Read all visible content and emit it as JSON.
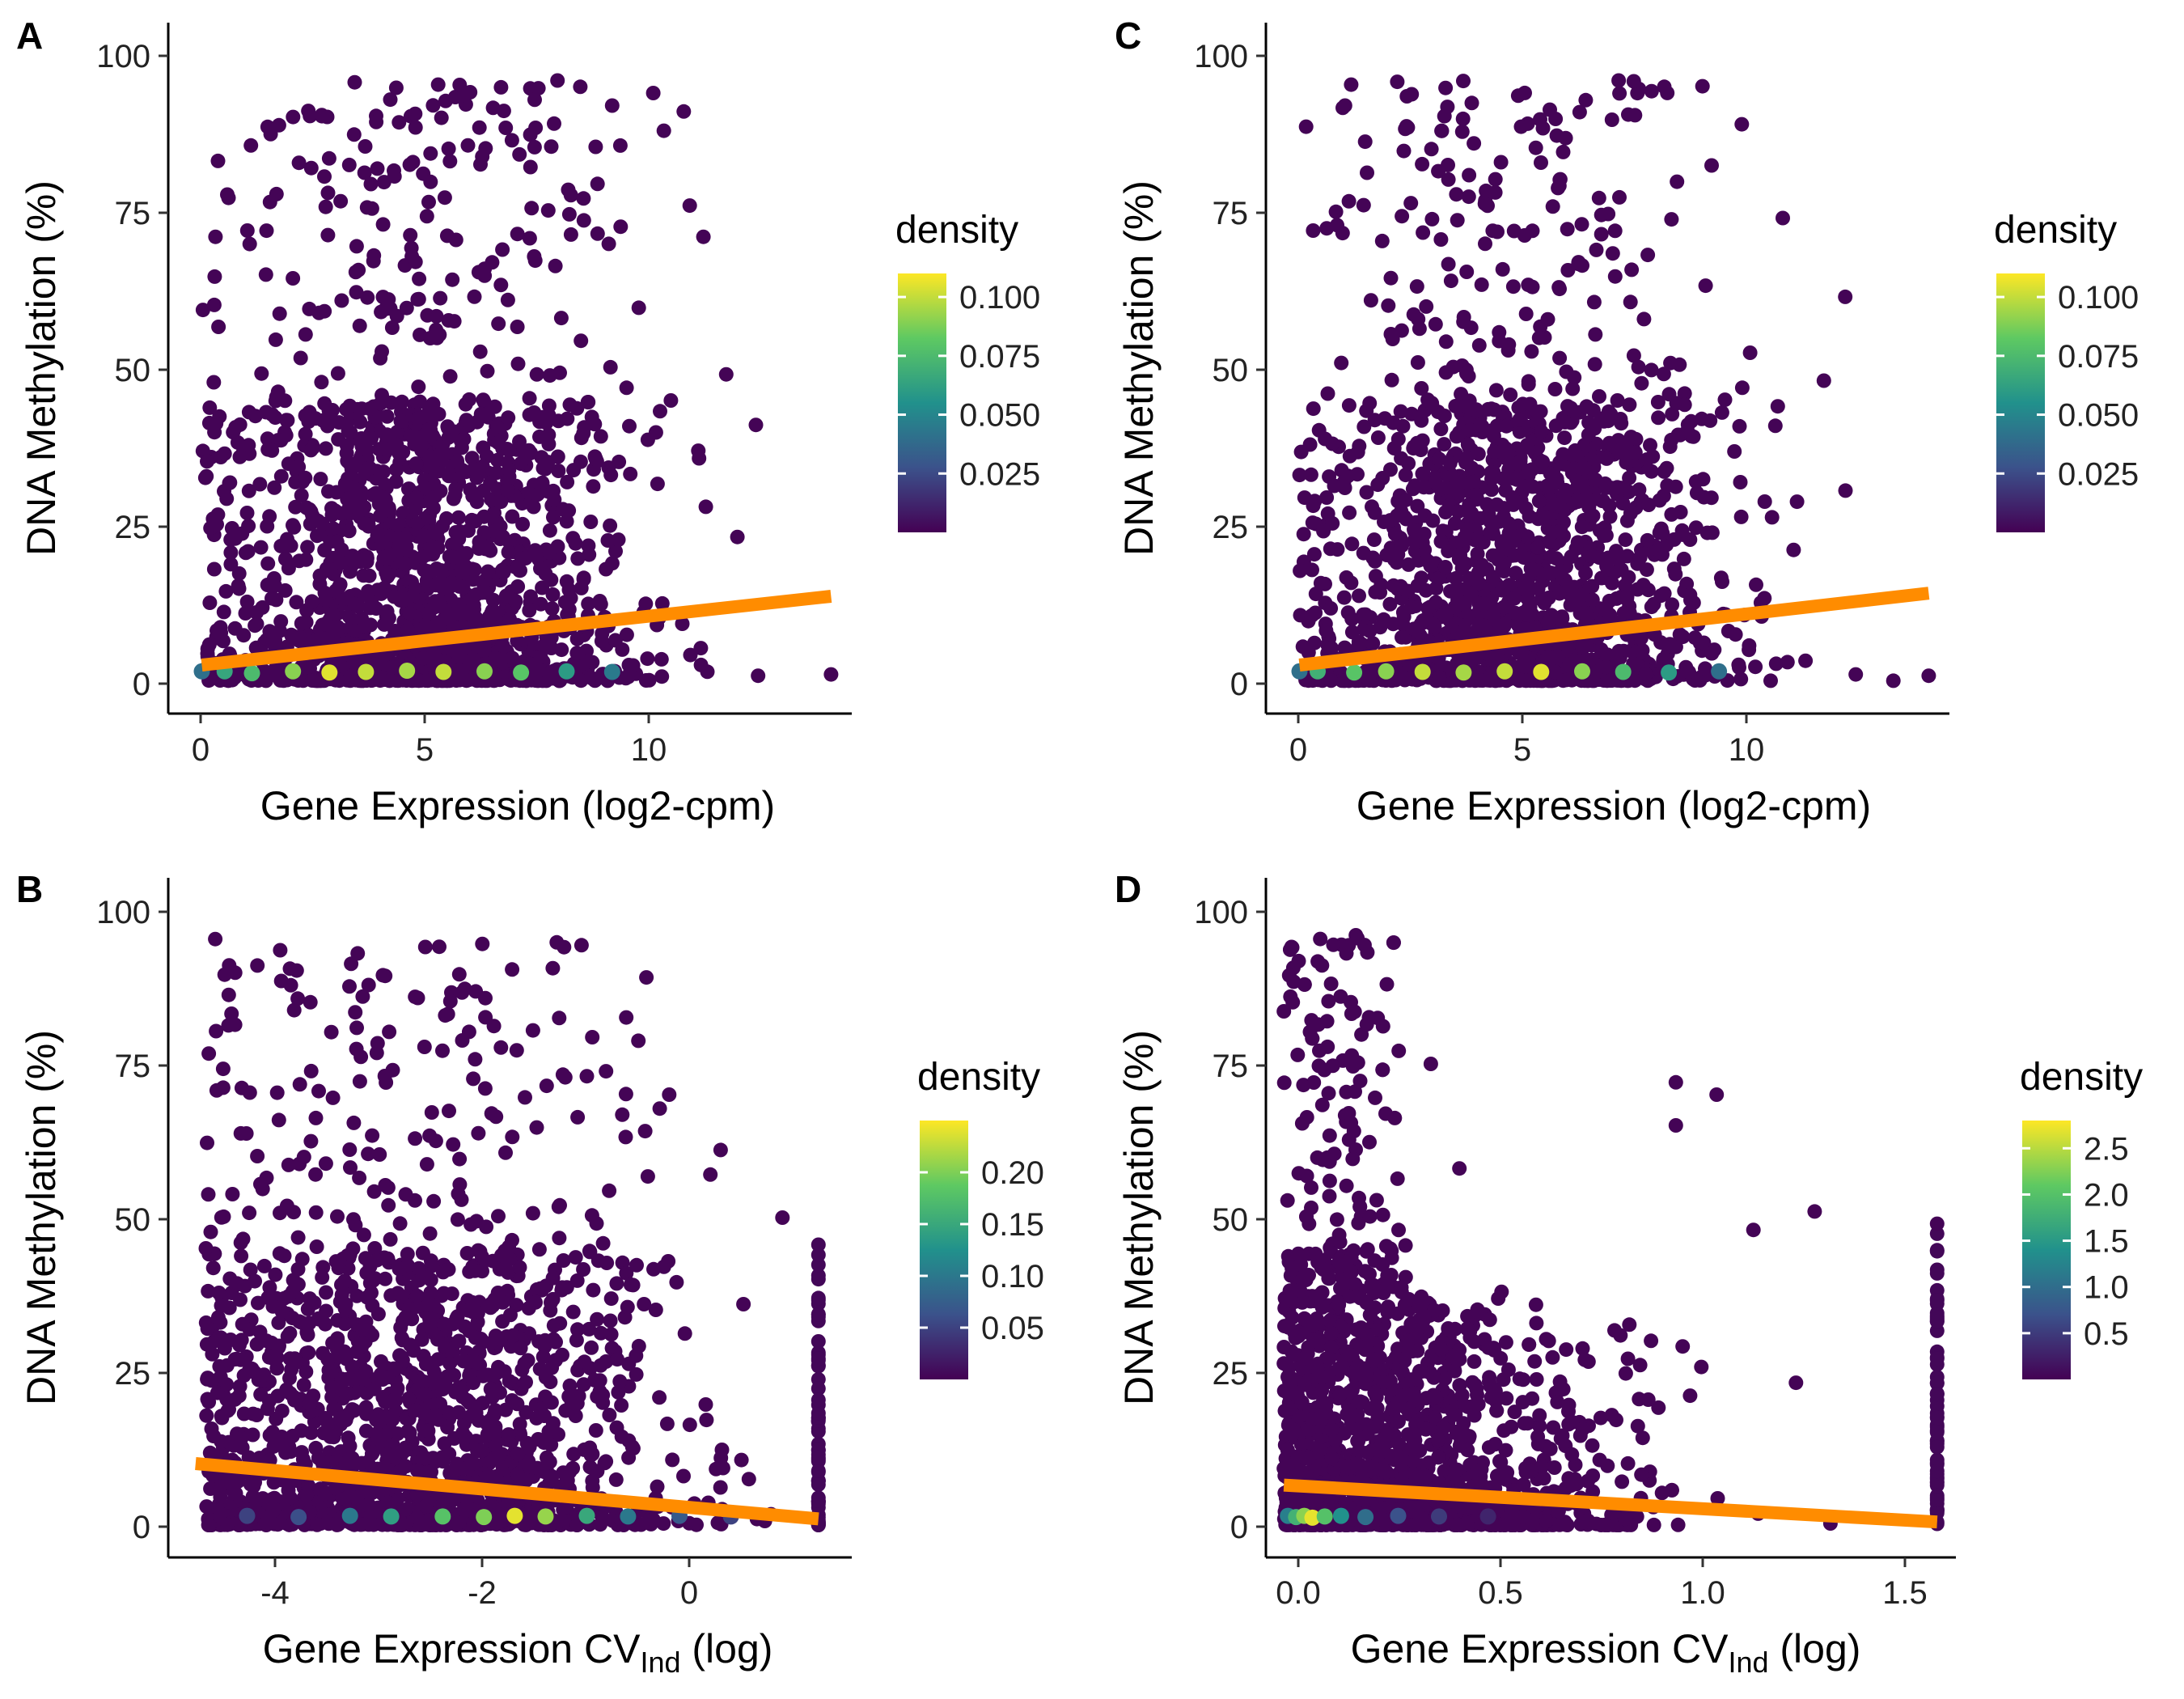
{
  "chart_data": [
    {
      "panel": "A",
      "type": "scatter",
      "xlabel": "Gene Expression (log2-cpm)",
      "ylabel": "DNA Methylation (%)",
      "xlim": [
        -0.7,
        14.2
      ],
      "ylim": [
        -5,
        105
      ],
      "xticks": [
        0,
        5,
        10
      ],
      "xtick_labels": [
        "0",
        "5",
        "10"
      ],
      "yticks": [
        0,
        25,
        50,
        75,
        100
      ],
      "ytick_labels": [
        "0",
        "25",
        "50",
        "75",
        "100"
      ],
      "grid": false,
      "legend": {
        "title": "density",
        "position": "right",
        "range": [
          0,
          0.11
        ],
        "ticks": [
          0.025,
          0.05,
          0.075,
          0.1
        ],
        "tick_labels": [
          "0.025",
          "0.050",
          "0.075",
          "0.100"
        ],
        "colormap": "viridis"
      },
      "cloud": {
        "x_center": 4.8,
        "x_spread": 2.2,
        "x_min": 0,
        "x_max": 13.8,
        "y_max": 96
      },
      "points": [
        [
          13.8,
          1
        ],
        [
          12.2,
          0.8
        ],
        [
          11.5,
          49
        ],
        [
          11.0,
          71
        ],
        [
          10.7,
          76
        ],
        [
          9.9,
          94
        ],
        [
          9.0,
          92
        ],
        [
          8.3,
          95
        ],
        [
          7.8,
          96
        ],
        [
          1.0,
          72
        ],
        [
          0.3,
          71
        ],
        [
          2.4,
          82
        ]
      ],
      "dense_band": [
        [
          0.5,
          1.5,
          0.065
        ],
        [
          1.1,
          1.2,
          0.075
        ],
        [
          2.0,
          1.5,
          0.09
        ],
        [
          2.8,
          1.3,
          0.105
        ],
        [
          3.6,
          1.4,
          0.1
        ],
        [
          4.5,
          1.6,
          0.095
        ],
        [
          5.3,
          1.4,
          0.1
        ],
        [
          6.2,
          1.5,
          0.09
        ],
        [
          7.0,
          1.3,
          0.08
        ],
        [
          8.0,
          1.5,
          0.06
        ],
        [
          9.0,
          1.4,
          0.045
        ],
        [
          0.0,
          1.5,
          0.04
        ]
      ],
      "trend": {
        "x": [
          0,
          13.8
        ],
        "y": [
          2.5,
          13.5
        ]
      }
    },
    {
      "panel": "C",
      "type": "scatter",
      "xlabel": "Gene Expression (log2-cpm)",
      "ylabel": "DNA Methylation (%)",
      "xlim": [
        -0.7,
        14.2
      ],
      "ylim": [
        -5,
        105
      ],
      "xticks": [
        0,
        5,
        10
      ],
      "xtick_labels": [
        "0",
        "5",
        "10"
      ],
      "yticks": [
        0,
        25,
        50,
        75,
        100
      ],
      "ytick_labels": [
        "0",
        "25",
        "50",
        "75",
        "100"
      ],
      "grid": false,
      "legend": {
        "title": "density",
        "position": "right",
        "range": [
          0,
          0.11
        ],
        "ticks": [
          0.025,
          0.05,
          0.075,
          0.1
        ],
        "tick_labels": [
          "0.025",
          "0.050",
          "0.075",
          "0.100"
        ],
        "colormap": "viridis"
      },
      "cloud": {
        "x_center": 4.7,
        "x_spread": 2.2,
        "x_min": 0,
        "x_max": 13.8,
        "y_max": 96
      },
      "points": [
        [
          13.8,
          0.8
        ],
        [
          12.2,
          1
        ],
        [
          11.5,
          48
        ],
        [
          10.6,
          74
        ],
        [
          9.7,
          89
        ],
        [
          8.0,
          95
        ],
        [
          7.0,
          96
        ],
        [
          1.0,
          92
        ],
        [
          0.3,
          72
        ],
        [
          0.8,
          75
        ]
      ],
      "dense_band": [
        [
          0.4,
          1.5,
          0.07
        ],
        [
          1.2,
          1.3,
          0.08
        ],
        [
          1.9,
          1.5,
          0.09
        ],
        [
          2.7,
          1.4,
          0.1
        ],
        [
          3.6,
          1.3,
          0.095
        ],
        [
          4.5,
          1.5,
          0.1
        ],
        [
          5.3,
          1.4,
          0.105
        ],
        [
          6.2,
          1.5,
          0.09
        ],
        [
          7.1,
          1.4,
          0.075
        ],
        [
          8.1,
          1.3,
          0.06
        ],
        [
          9.2,
          1.5,
          0.04
        ],
        [
          0.0,
          1.5,
          0.04
        ]
      ],
      "trend": {
        "x": [
          0,
          13.8
        ],
        "y": [
          2.5,
          14
        ]
      }
    },
    {
      "panel": "B",
      "type": "scatter",
      "xlabel": "Gene Expression CV",
      "xlabel_sub": "Ind",
      "xlabel_suffix": " (log)",
      "ylabel": "DNA Methylation (%)",
      "xlim": [
        -4.95,
        1.65
      ],
      "ylim": [
        -5,
        105
      ],
      "xticks": [
        -4,
        -2,
        0
      ],
      "xtick_labels": [
        "-4",
        "-2",
        "0"
      ],
      "yticks": [
        0,
        25,
        50,
        75,
        100
      ],
      "ytick_labels": [
        "0",
        "25",
        "50",
        "75",
        "100"
      ],
      "grid": false,
      "legend": {
        "title": "density",
        "position": "right",
        "range": [
          0,
          0.25
        ],
        "ticks": [
          0.05,
          0.1,
          0.15,
          0.2
        ],
        "tick_labels": [
          "0.05",
          "0.10",
          "0.15",
          "0.20"
        ],
        "colormap": "viridis"
      },
      "cloud": {
        "x_center": -2.6,
        "x_spread": 1.2,
        "x_min": -4.6,
        "x_max": 1.35,
        "y_max": 96
      },
      "points": [
        [
          -4.6,
          45
        ],
        [
          -4.1,
          91
        ],
        [
          -0.1,
          70
        ],
        [
          0.3,
          57
        ],
        [
          0.4,
          61
        ],
        [
          1.0,
          50
        ],
        [
          -0.9,
          73
        ]
      ],
      "dense_band": [
        [
          -4.2,
          1.5,
          0.05
        ],
        [
          -3.7,
          1.3,
          0.06
        ],
        [
          -3.2,
          1.5,
          0.1
        ],
        [
          -2.8,
          1.4,
          0.14
        ],
        [
          -2.3,
          1.4,
          0.18
        ],
        [
          -1.9,
          1.3,
          0.2
        ],
        [
          -1.6,
          1.5,
          0.24
        ],
        [
          -1.3,
          1.4,
          0.21
        ],
        [
          -0.9,
          1.5,
          0.15
        ],
        [
          -0.5,
          1.4,
          0.1
        ],
        [
          0.0,
          1.5,
          0.07
        ],
        [
          0.5,
          1.4,
          0.05
        ]
      ],
      "trend": {
        "x": [
          -4.7,
          1.35
        ],
        "y": [
          10,
          1
        ]
      }
    },
    {
      "panel": "D",
      "type": "scatter",
      "xlabel": "Gene Expression CV",
      "xlabel_sub": "Ind",
      "xlabel_suffix": " (log)",
      "ylabel": "DNA Methylation (%)",
      "xlim": [
        -0.04,
        1.64
      ],
      "ylim": [
        -5,
        105
      ],
      "xticks": [
        0.0,
        0.5,
        1.0,
        1.5
      ],
      "xtick_labels": [
        "0.0",
        "0.5",
        "1.0",
        "1.5"
      ],
      "yticks": [
        0,
        25,
        50,
        75,
        100
      ],
      "ytick_labels": [
        "0",
        "25",
        "50",
        "75",
        "100"
      ],
      "grid": false,
      "legend": {
        "title": "density",
        "position": "right",
        "range": [
          0,
          2.8
        ],
        "ticks": [
          0.5,
          1.0,
          1.5,
          2.0,
          2.5
        ],
        "tick_labels": [
          "0.5",
          "1.0",
          "1.5",
          "2.0",
          "2.5"
        ],
        "colormap": "viridis"
      },
      "cloud": {
        "x_center": 0.05,
        "x_spread": 0.35,
        "x_min": 0,
        "x_max": 1.6,
        "y_max": 96
      },
      "points": [
        [
          0.36,
          75
        ],
        [
          0.96,
          72
        ],
        [
          1.06,
          70
        ],
        [
          0.96,
          65
        ],
        [
          0.43,
          58
        ],
        [
          1.6,
          49
        ],
        [
          1.3,
          51
        ],
        [
          1.15,
          48
        ]
      ],
      "dense_band": [
        [
          0.01,
          1.5,
          1.2
        ],
        [
          0.03,
          1.3,
          1.8
        ],
        [
          0.05,
          1.5,
          2.3
        ],
        [
          0.07,
          1.2,
          2.7
        ],
        [
          0.1,
          1.4,
          2.0
        ],
        [
          0.14,
          1.5,
          1.4
        ],
        [
          0.2,
          1.3,
          1.0
        ],
        [
          0.28,
          1.5,
          0.7
        ],
        [
          0.38,
          1.4,
          0.5
        ],
        [
          0.5,
          1.4,
          0.3
        ]
      ],
      "trend": {
        "x": [
          0.0,
          1.6
        ],
        "y": [
          6.5,
          0.5
        ]
      }
    }
  ]
}
